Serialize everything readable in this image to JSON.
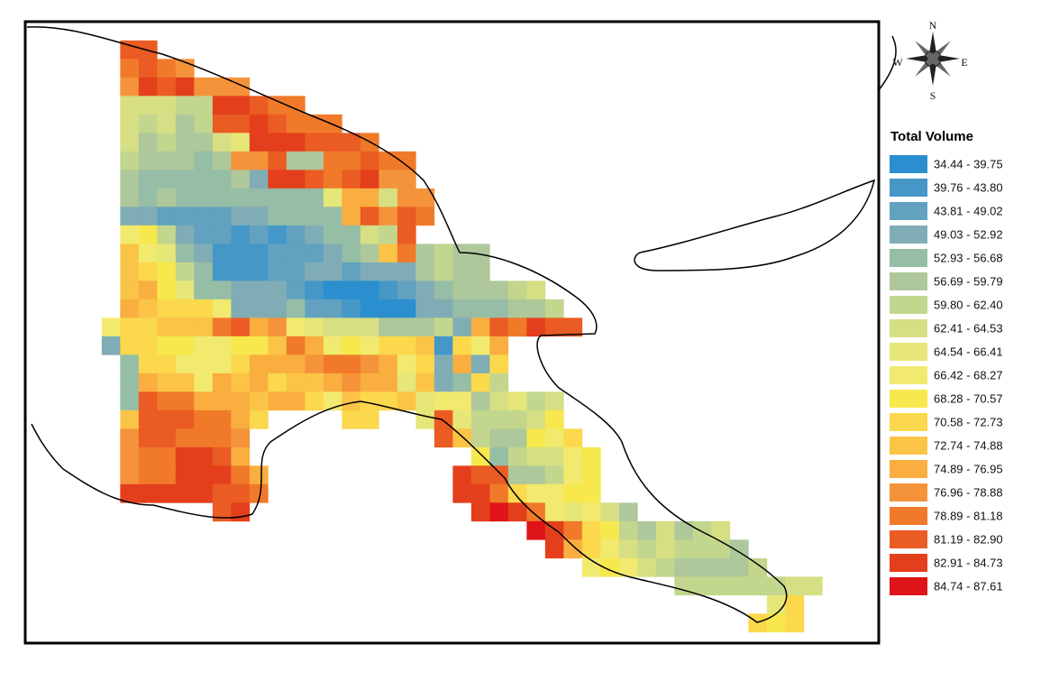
{
  "map": {
    "compass": {
      "n": "N",
      "s": "S",
      "e": "E",
      "w": "W"
    },
    "legend": {
      "title": "Total Volume",
      "items": [
        {
          "label": "34.44 - 39.75",
          "color": "#2b8fcf"
        },
        {
          "label": "39.76 - 43.80",
          "color": "#4597c8"
        },
        {
          "label": "43.81 - 49.02",
          "color": "#62a1c0"
        },
        {
          "label": "49.03 - 52.92",
          "color": "#80adb5"
        },
        {
          "label": "52.93 - 56.68",
          "color": "#96bda6"
        },
        {
          "label": "56.69 - 59.79",
          "color": "#aec89b"
        },
        {
          "label": "59.80 - 62.40",
          "color": "#c3d68e"
        },
        {
          "label": "62.41 - 64.53",
          "color": "#d6df83"
        },
        {
          "label": "64.54 - 66.41",
          "color": "#e6e679"
        },
        {
          "label": "66.42 - 68.27",
          "color": "#f1ea6e"
        },
        {
          "label": "68.28 - 70.57",
          "color": "#f7e84e"
        },
        {
          "label": "70.58 - 72.73",
          "color": "#fbd84c"
        },
        {
          "label": "72.74 - 74.88",
          "color": "#fbc447"
        },
        {
          "label": "74.89 - 76.95",
          "color": "#f9ae3f"
        },
        {
          "label": "76.96 - 78.88",
          "color": "#f5933a"
        },
        {
          "label": "78.89 - 81.18",
          "color": "#f07a2a"
        },
        {
          "label": "81.19 - 82.90",
          "color": "#ea5c23"
        },
        {
          "label": "82.91 - 84.73",
          "color": "#e43f1d"
        },
        {
          "label": "84.74 - 87.61",
          "color": "#df1418"
        }
      ]
    }
  }
}
